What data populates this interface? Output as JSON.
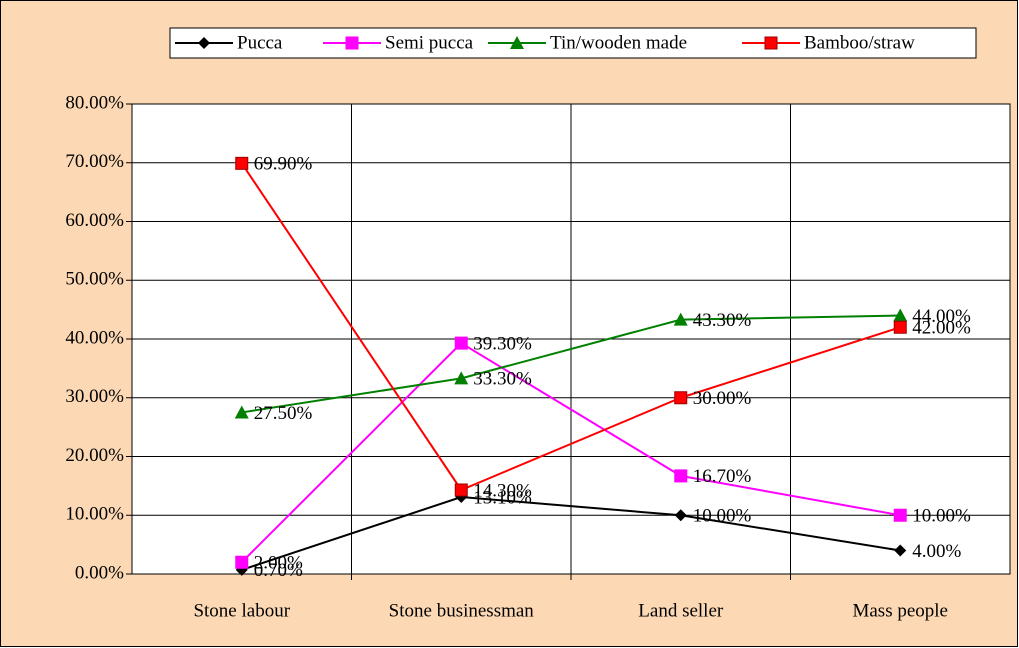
{
  "chart_data": {
    "type": "line",
    "categories": [
      "Stone labour",
      "Stone businessman",
      "Land seller",
      "Mass people"
    ],
    "series": [
      {
        "name": "Pucca",
        "color": "#000000",
        "marker": "diamond",
        "values": [
          0.7,
          13.1,
          10.0,
          4.0
        ],
        "value_labels": [
          "0.70%",
          "13.10%",
          "10.00%",
          "4.00%"
        ]
      },
      {
        "name": "Semi pucca",
        "color": "#ff00ff",
        "marker": "square",
        "values": [
          2.0,
          39.3,
          16.7,
          10.0
        ],
        "value_labels": [
          "2.00%",
          "39.30%",
          "16.70%",
          "10.00%"
        ]
      },
      {
        "name": "Tin/wooden made",
        "color": "#008000",
        "marker": "triangle",
        "values": [
          27.5,
          33.3,
          43.3,
          44.0
        ],
        "value_labels": [
          "27.50%",
          "33.30%",
          "43.30%",
          "44.00%"
        ]
      },
      {
        "name": "Bamboo/straw",
        "color": "#ff0000",
        "marker": "square",
        "values": [
          69.9,
          14.3,
          30.0,
          42.0
        ],
        "value_labels": [
          "69.90%",
          "14.30%",
          "30.00%",
          "42.00%"
        ]
      }
    ],
    "ylim": [
      0,
      80
    ],
    "yticks": [
      {
        "value": 0,
        "label": "0.00%"
      },
      {
        "value": 10,
        "label": "10.00%"
      },
      {
        "value": 20,
        "label": "20.00%"
      },
      {
        "value": 30,
        "label": "30.00%"
      },
      {
        "value": 40,
        "label": "40.00%"
      },
      {
        "value": 50,
        "label": "50.00%"
      },
      {
        "value": 60,
        "label": "60.00%"
      },
      {
        "value": 70,
        "label": "70.00%"
      },
      {
        "value": 80,
        "label": "80.00%"
      }
    ],
    "grid": true,
    "legend": "top"
  }
}
